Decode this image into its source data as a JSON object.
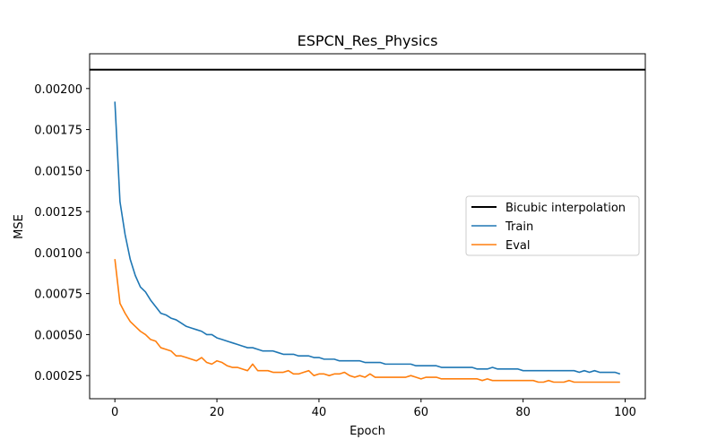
{
  "chart_data": {
    "type": "line",
    "title": "ESPCN_Res_Physics",
    "xlabel": "Epoch",
    "ylabel": "MSE",
    "xlim": [
      -4.95,
      103.95
    ],
    "ylim": [
      0.000109,
      0.002212
    ],
    "xticks": [
      0,
      20,
      40,
      60,
      80,
      100
    ],
    "xtick_labels": [
      "0",
      "20",
      "40",
      "60",
      "80",
      "100"
    ],
    "yticks": [
      0.00025,
      0.0005,
      0.00075,
      0.001,
      0.00125,
      0.0015,
      0.00175,
      0.002
    ],
    "ytick_labels": [
      "0.00025",
      "0.00050",
      "0.00075",
      "0.00100",
      "0.00125",
      "0.00150",
      "0.00175",
      "0.00200"
    ],
    "grid": false,
    "legend_position": "center-right",
    "hlines": [
      {
        "name": "Bicubic interpolation",
        "y": 0.002115,
        "color": "#000000"
      }
    ],
    "series": [
      {
        "name": "Train",
        "color": "#1f77b4",
        "x": [
          0,
          1,
          2,
          3,
          4,
          5,
          6,
          7,
          8,
          9,
          10,
          11,
          12,
          13,
          14,
          15,
          16,
          17,
          18,
          19,
          20,
          21,
          22,
          23,
          24,
          25,
          26,
          27,
          28,
          29,
          30,
          31,
          32,
          33,
          34,
          35,
          36,
          37,
          38,
          39,
          40,
          41,
          42,
          43,
          44,
          45,
          46,
          47,
          48,
          49,
          50,
          51,
          52,
          53,
          54,
          55,
          56,
          57,
          58,
          59,
          60,
          61,
          62,
          63,
          64,
          65,
          66,
          67,
          68,
          69,
          70,
          71,
          72,
          73,
          74,
          75,
          76,
          77,
          78,
          79,
          80,
          81,
          82,
          83,
          84,
          85,
          86,
          87,
          88,
          89,
          90,
          91,
          92,
          93,
          94,
          95,
          96,
          97,
          98,
          99
        ],
        "values": [
          0.00192,
          0.00131,
          0.00111,
          0.00096,
          0.00086,
          0.00079,
          0.00076,
          0.00071,
          0.00067,
          0.00063,
          0.00062,
          0.0006,
          0.00059,
          0.00057,
          0.00055,
          0.00054,
          0.00053,
          0.00052,
          0.0005,
          0.0005,
          0.00048,
          0.00047,
          0.00046,
          0.00045,
          0.00044,
          0.00043,
          0.00042,
          0.00042,
          0.00041,
          0.0004,
          0.0004,
          0.0004,
          0.00039,
          0.00038,
          0.00038,
          0.00038,
          0.00037,
          0.00037,
          0.00037,
          0.00036,
          0.00036,
          0.00035,
          0.00035,
          0.00035,
          0.00034,
          0.00034,
          0.00034,
          0.00034,
          0.00034,
          0.00033,
          0.00033,
          0.00033,
          0.00033,
          0.00032,
          0.00032,
          0.00032,
          0.00032,
          0.00032,
          0.00032,
          0.00031,
          0.00031,
          0.00031,
          0.00031,
          0.00031,
          0.0003,
          0.0003,
          0.0003,
          0.0003,
          0.0003,
          0.0003,
          0.0003,
          0.00029,
          0.00029,
          0.00029,
          0.0003,
          0.00029,
          0.00029,
          0.00029,
          0.00029,
          0.00029,
          0.00028,
          0.00028,
          0.00028,
          0.00028,
          0.00028,
          0.00028,
          0.00028,
          0.00028,
          0.00028,
          0.00028,
          0.00028,
          0.00027,
          0.00028,
          0.00027,
          0.00028,
          0.00027,
          0.00027,
          0.00027,
          0.00027,
          0.00026
        ]
      },
      {
        "name": "Eval",
        "color": "#ff7f0e",
        "x": [
          0,
          1,
          2,
          3,
          4,
          5,
          6,
          7,
          8,
          9,
          10,
          11,
          12,
          13,
          14,
          15,
          16,
          17,
          18,
          19,
          20,
          21,
          22,
          23,
          24,
          25,
          26,
          27,
          28,
          29,
          30,
          31,
          32,
          33,
          34,
          35,
          36,
          37,
          38,
          39,
          40,
          41,
          42,
          43,
          44,
          45,
          46,
          47,
          48,
          49,
          50,
          51,
          52,
          53,
          54,
          55,
          56,
          57,
          58,
          59,
          60,
          61,
          62,
          63,
          64,
          65,
          66,
          67,
          68,
          69,
          70,
          71,
          72,
          73,
          74,
          75,
          76,
          77,
          78,
          79,
          80,
          81,
          82,
          83,
          84,
          85,
          86,
          87,
          88,
          89,
          90,
          91,
          92,
          93,
          94,
          95,
          96,
          97,
          98,
          99
        ],
        "values": [
          0.00096,
          0.00069,
          0.00063,
          0.00058,
          0.00055,
          0.00052,
          0.0005,
          0.00047,
          0.00046,
          0.00042,
          0.00041,
          0.0004,
          0.00037,
          0.00037,
          0.00036,
          0.00035,
          0.00034,
          0.00036,
          0.00033,
          0.00032,
          0.00034,
          0.00033,
          0.00031,
          0.0003,
          0.0003,
          0.00029,
          0.00028,
          0.00032,
          0.00028,
          0.00028,
          0.00028,
          0.00027,
          0.00027,
          0.00027,
          0.00028,
          0.00026,
          0.00026,
          0.00027,
          0.00028,
          0.00025,
          0.00026,
          0.00026,
          0.00025,
          0.00026,
          0.00026,
          0.00027,
          0.00025,
          0.00024,
          0.00025,
          0.00024,
          0.00026,
          0.00024,
          0.00024,
          0.00024,
          0.00024,
          0.00024,
          0.00024,
          0.00024,
          0.00025,
          0.00024,
          0.00023,
          0.00024,
          0.00024,
          0.00024,
          0.00023,
          0.00023,
          0.00023,
          0.00023,
          0.00023,
          0.00023,
          0.00023,
          0.00023,
          0.00022,
          0.00023,
          0.00022,
          0.00022,
          0.00022,
          0.00022,
          0.00022,
          0.00022,
          0.00022,
          0.00022,
          0.00022,
          0.00021,
          0.00021,
          0.00022,
          0.00021,
          0.00021,
          0.00021,
          0.00022,
          0.00021,
          0.00021,
          0.00021,
          0.00021,
          0.00021,
          0.00021,
          0.00021,
          0.00021,
          0.00021,
          0.00021
        ]
      }
    ]
  }
}
